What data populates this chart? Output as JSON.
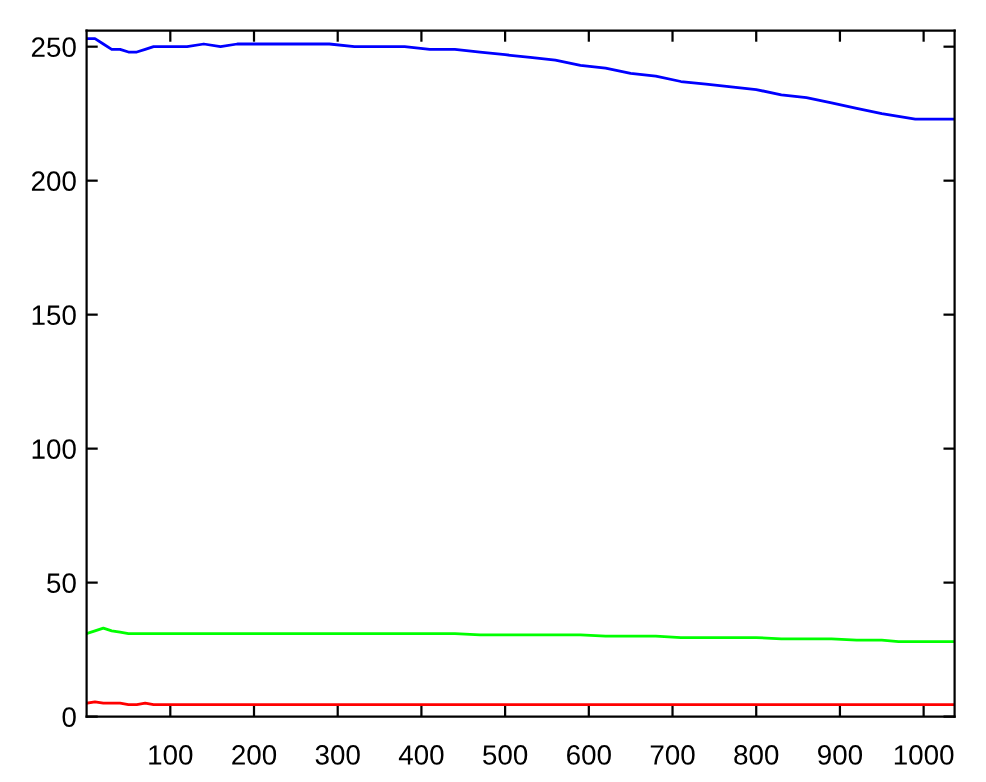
{
  "chart_data": {
    "type": "line",
    "xlim": [
      0,
      1037
    ],
    "ylim": [
      0,
      256
    ],
    "xticks": [
      100,
      200,
      300,
      400,
      500,
      600,
      700,
      800,
      900,
      1000
    ],
    "yticks": [
      0,
      50,
      100,
      150,
      200,
      250
    ],
    "grid": false,
    "legend": false,
    "marker": "none",
    "line_style": "solid",
    "x": [
      0,
      10,
      20,
      30,
      40,
      50,
      60,
      70,
      80,
      100,
      120,
      140,
      160,
      180,
      200,
      230,
      260,
      290,
      320,
      350,
      380,
      410,
      440,
      470,
      500,
      530,
      560,
      590,
      620,
      650,
      680,
      710,
      740,
      770,
      800,
      830,
      860,
      890,
      920,
      950,
      970,
      990,
      1010,
      1037
    ],
    "series": [
      {
        "color": "#0000ff",
        "values": [
          253,
          253,
          251,
          249,
          249,
          248,
          248,
          249,
          250,
          250,
          250,
          251,
          250,
          251,
          251,
          251,
          251,
          251,
          250,
          250,
          250,
          249,
          249,
          248,
          247,
          246,
          245,
          243,
          242,
          240,
          239,
          237,
          236,
          235,
          234,
          232,
          231,
          229,
          227,
          225,
          224,
          223,
          223,
          223
        ]
      },
      {
        "color": "#00ff00",
        "values": [
          31,
          32,
          33,
          32,
          31.5,
          31,
          31,
          31,
          31,
          31,
          31,
          31,
          31,
          31,
          31,
          31,
          31,
          31,
          31,
          31,
          31,
          31,
          31,
          30.5,
          30.5,
          30.5,
          30.5,
          30.5,
          30,
          30,
          30,
          29.5,
          29.5,
          29.5,
          29.5,
          29,
          29,
          29,
          28.5,
          28.5,
          28,
          28,
          28,
          28
        ]
      },
      {
        "color": "#ff0000",
        "values": [
          5,
          5.5,
          5,
          5,
          5,
          4.5,
          4.5,
          5,
          4.5,
          4.5,
          4.5,
          4.5,
          4.5,
          4.5,
          4.5,
          4.5,
          4.5,
          4.5,
          4.5,
          4.5,
          4.5,
          4.5,
          4.5,
          4.5,
          4.5,
          4.5,
          4.5,
          4.5,
          4.5,
          4.5,
          4.5,
          4.5,
          4.5,
          4.5,
          4.5,
          4.5,
          4.5,
          4.5,
          4.5,
          4.5,
          4.5,
          4.5,
          4.5,
          4.5
        ]
      }
    ]
  }
}
